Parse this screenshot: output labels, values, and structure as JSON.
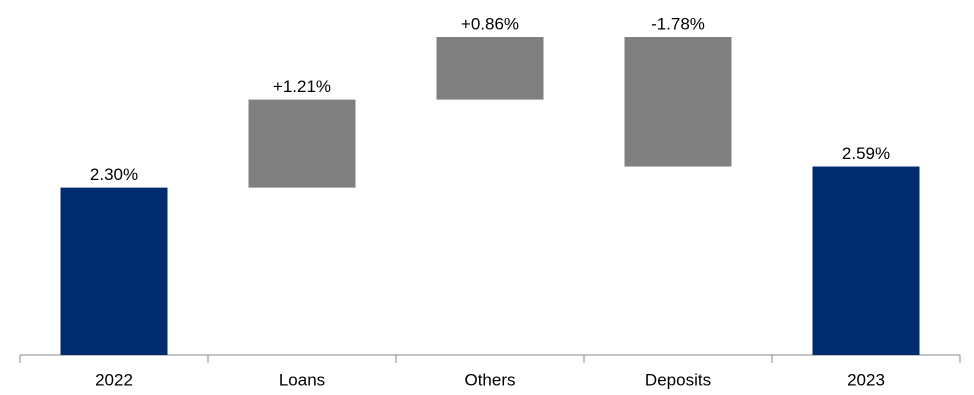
{
  "chart_data": {
    "type": "waterfall",
    "categories": [
      "2022",
      "Loans",
      "Others",
      "Deposits",
      "2023"
    ],
    "values": [
      2.3,
      1.21,
      0.86,
      -1.78,
      2.59
    ],
    "value_labels": [
      "2.30%",
      "+1.21%",
      "+0.86%",
      "-1.78%",
      "2.59%"
    ],
    "colors": [
      "#002b6e",
      "#808080",
      "#808080",
      "#808080",
      "#002b6e"
    ]
  }
}
